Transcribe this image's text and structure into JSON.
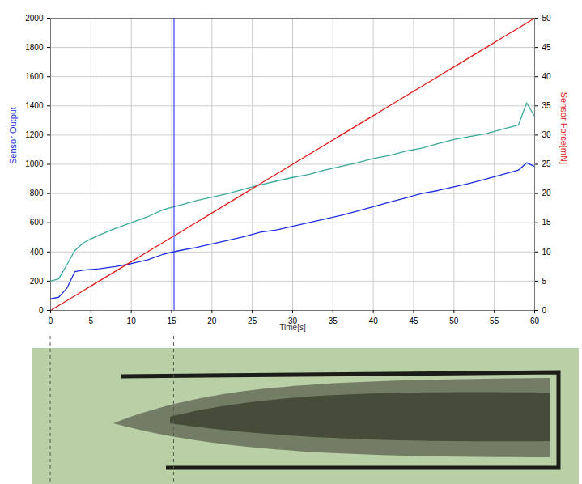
{
  "chart_data": {
    "type": "line",
    "x_label": "Time[s]",
    "y_label": "Sensor Output",
    "y2_label": "Sensor Force[mN]",
    "x": [
      0,
      1,
      2,
      3,
      4,
      5,
      6,
      8,
      10,
      12,
      14,
      16,
      18,
      20,
      22,
      24,
      26,
      28,
      30,
      32,
      34,
      36,
      38,
      40,
      42,
      44,
      46,
      48,
      50,
      52,
      54,
      56,
      58,
      59,
      60
    ],
    "series": [
      {
        "color": "#1a2ee0",
        "type": "line",
        "values": [
          80,
          90,
          150,
          265,
          275,
          280,
          285,
          300,
          320,
          345,
          385,
          410,
          430,
          455,
          480,
          505,
          535,
          550,
          575,
          600,
          625,
          650,
          680,
          710,
          740,
          770,
          800,
          820,
          845,
          870,
          900,
          930,
          960,
          1010,
          985
        ]
      },
      {
        "color": "#3aa89a",
        "type": "line",
        "values": [
          200,
          215,
          310,
          410,
          460,
          490,
          515,
          560,
          600,
          640,
          690,
          720,
          750,
          775,
          800,
          830,
          860,
          885,
          910,
          930,
          960,
          985,
          1010,
          1040,
          1060,
          1090,
          1110,
          1140,
          1170,
          1190,
          1210,
          1240,
          1270,
          1420,
          1330
        ]
      },
      {
        "color": "#e01818",
        "type": "line",
        "axis": "y2",
        "values": [
          0,
          0.83,
          1.67,
          2.5,
          3.33,
          4.17,
          5,
          6.67,
          8.33,
          10,
          11.67,
          13.33,
          15,
          16.67,
          18.33,
          20,
          21.67,
          23.33,
          25,
          26.67,
          28.33,
          30,
          31.67,
          33.33,
          35,
          36.67,
          38.33,
          40,
          41.67,
          43.33,
          45,
          46.67,
          48.33,
          49.17,
          50
        ]
      }
    ],
    "cursor": 15.3,
    "xlim": [
      0,
      60
    ],
    "xticks": [
      0,
      5,
      10,
      15,
      20,
      25,
      30,
      35,
      40,
      45,
      50,
      55,
      60
    ],
    "ylim": [
      0,
      2000
    ],
    "yticks": [
      0,
      200,
      400,
      600,
      800,
      1000,
      1200,
      1400,
      1600,
      1800,
      2000
    ],
    "y2lim": [
      0,
      50
    ],
    "y2ticks": [
      0,
      5,
      10,
      15,
      20,
      25,
      30,
      35,
      40,
      45,
      50
    ],
    "grid": true
  }
}
